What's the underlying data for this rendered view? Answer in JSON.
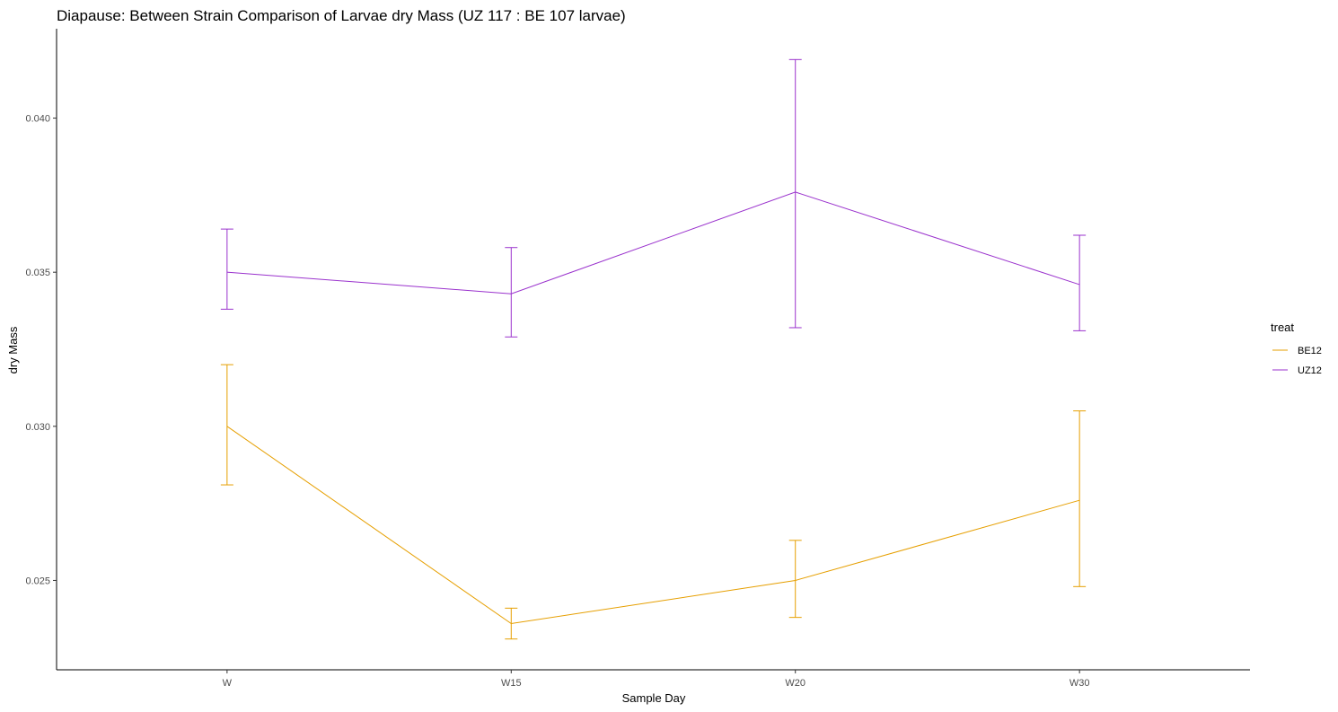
{
  "chart_data": {
    "type": "line",
    "title": "Diapause: Between Strain Comparison of Larvae dry Mass (UZ 117 : BE 107 larvae)",
    "xlabel": "Sample Day",
    "ylabel": "dry Mass",
    "categories": [
      "W",
      "W15",
      "W20",
      "W30"
    ],
    "ylim": [
      0.0221,
      0.0429
    ],
    "yticks": [
      0.025,
      0.03,
      0.035,
      0.04
    ],
    "ytick_labels": [
      "0.025",
      "0.030",
      "0.035",
      "0.040"
    ],
    "grid": false,
    "error_bars": true,
    "legend": {
      "title": "treat",
      "placement": "right"
    },
    "series": [
      {
        "name": "BE12",
        "color": "#E69F00",
        "values": [
          0.03,
          0.0236,
          0.025,
          0.0276
        ],
        "lower": [
          0.0281,
          0.0231,
          0.0238,
          0.0248
        ],
        "upper": [
          0.032,
          0.0241,
          0.0263,
          0.0305
        ]
      },
      {
        "name": "UZ12",
        "color": "#9A32CD",
        "values": [
          0.035,
          0.0343,
          0.0376,
          0.0346
        ],
        "lower": [
          0.0338,
          0.0329,
          0.0332,
          0.0331
        ],
        "upper": [
          0.0364,
          0.0358,
          0.0419,
          0.0362
        ]
      }
    ]
  }
}
